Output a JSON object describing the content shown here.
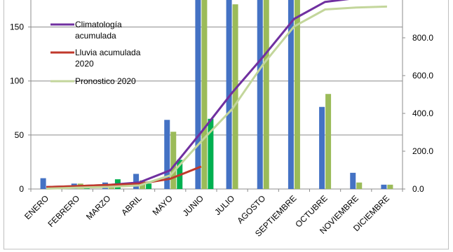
{
  "chart_data": {
    "type": "bar",
    "categories": [
      "ENERO",
      "FEBRERO",
      "MARZO",
      "ABRIL",
      "MAYO",
      "JUNIO",
      "JULIO",
      "AGOSTO",
      "SEPTIEMBRE",
      "OCTUBRE",
      "NOVIEMBRE",
      "DICIEMBRE"
    ],
    "y_left": {
      "ticks": [
        "0",
        "50",
        "100",
        "150"
      ],
      "ylim": [
        0,
        175
      ]
    },
    "y_right": {
      "ticks": [
        "0.0",
        "200.0",
        "400.0",
        "600.0",
        "800.0"
      ],
      "ylim": [
        0,
        1000
      ]
    },
    "grid": true,
    "bar_series": [
      {
        "color": "#4472C4",
        "values": [
          10,
          5,
          6,
          14,
          64,
          180,
          180,
          180,
          180,
          76,
          15,
          4
        ]
      },
      {
        "color": "#9BBB59",
        "values": [
          2,
          5,
          4,
          8,
          53,
          180,
          171,
          180,
          180,
          88,
          6,
          4
        ]
      }
    ],
    "bar_series_2020": {
      "color": "#00B050",
      "values": [
        2,
        3,
        9,
        5,
        27,
        65
      ]
    },
    "line_series": [
      {
        "name": "Climatología acumulada",
        "color": "#7030A0",
        "axis": "right",
        "values": [
          10,
          15,
          21,
          35,
          99,
          300,
          510,
          700,
          900,
          990,
          1010,
          1020
        ]
      },
      {
        "name": "Lluvia acumulada 2020",
        "color": "#C0392B",
        "axis": "right",
        "values": [
          10,
          15,
          22,
          27,
          54,
          119
        ]
      },
      {
        "name": "Pronostico 2020",
        "color": "#C3D69B",
        "axis": "right",
        "values": [
          2,
          7,
          11,
          19,
          72,
          252,
          423,
          660,
          860,
          950,
          960,
          965
        ]
      }
    ],
    "legend": {
      "position": "top-left"
    }
  }
}
